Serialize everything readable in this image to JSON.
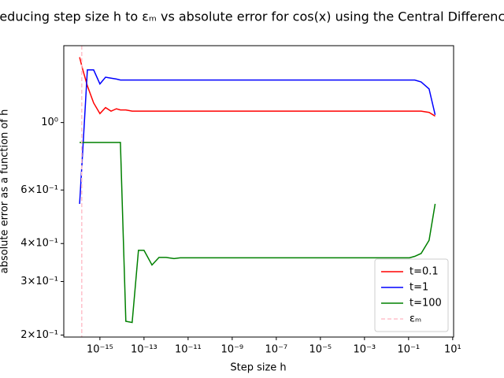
{
  "chart_data": {
    "type": "line",
    "title": "Reducing step size h to εₘ vs absolute error for cos(x) using the Central Difference",
    "xlabel": "Step size h",
    "ylabel": "absolute error as a function of h",
    "xscale": "log",
    "yscale": "log",
    "xlim": [
      2.3e-17,
      11
    ],
    "ylim": [
      0.197,
      1.79
    ],
    "xticks": [
      {
        "value": 1e-15,
        "label": "10⁻¹⁵"
      },
      {
        "value": 1e-13,
        "label": "10⁻¹³"
      },
      {
        "value": 1e-11,
        "label": "10⁻¹¹"
      },
      {
        "value": 1e-09,
        "label": "10⁻⁹"
      },
      {
        "value": 1e-07,
        "label": "10⁻⁷"
      },
      {
        "value": 1e-05,
        "label": "10⁻⁵"
      },
      {
        "value": 0.001,
        "label": "10⁻³"
      },
      {
        "value": 0.1,
        "label": "10⁻¹"
      },
      {
        "value": 10,
        "label": "10¹"
      }
    ],
    "yticks": [
      {
        "value": 0.2,
        "label": "2×10⁻¹"
      },
      {
        "value": 0.3,
        "label": "3×10⁻¹"
      },
      {
        "value": 0.4,
        "label": "4×10⁻¹"
      },
      {
        "value": 0.6,
        "label": "6×10⁻¹"
      },
      {
        "value": 1,
        "label": "10⁰"
      }
    ],
    "legend": "lower right",
    "x": [
      1.2e-16,
      1.6e-16,
      2.7e-16,
      5.2e-16,
      1e-15,
      1.8e-15,
      3.2e-15,
      5.6e-15,
      8.5e-15,
      1.5e-14,
      2.9e-14,
      5.6e-14,
      1e-13,
      2.3e-13,
      4.8e-13,
      1e-12,
      2.3e-12,
      4.4e-12,
      1.5e-09,
      5.6e-06,
      0.11,
      0.19,
      0.37,
      0.85,
      1.6
    ],
    "series": [
      {
        "name": "t=0.1",
        "color": "#ff0000",
        "values": [
          1.64,
          1.51,
          1.32,
          1.16,
          1.07,
          1.12,
          1.09,
          1.11,
          1.1,
          1.1,
          1.09,
          1.09,
          1.09,
          1.09,
          1.09,
          1.09,
          1.09,
          1.09,
          1.09,
          1.09,
          1.09,
          1.09,
          1.09,
          1.08,
          1.05
        ]
      },
      {
        "name": "t=1",
        "color": "#0000ff",
        "values": [
          0.54,
          0.77,
          1.49,
          1.49,
          1.34,
          1.41,
          1.4,
          1.39,
          1.38,
          1.38,
          1.38,
          1.38,
          1.38,
          1.38,
          1.38,
          1.38,
          1.38,
          1.38,
          1.38,
          1.38,
          1.38,
          1.38,
          1.36,
          1.29,
          1.06
        ]
      },
      {
        "name": "t=100",
        "color": "#008000",
        "values": [
          0.86,
          0.86,
          0.86,
          0.86,
          0.86,
          0.86,
          0.86,
          0.86,
          0.86,
          0.222,
          0.22,
          0.38,
          0.38,
          0.34,
          0.36,
          0.36,
          0.357,
          0.359,
          0.359,
          0.359,
          0.359,
          0.363,
          0.371,
          0.41,
          0.54
        ]
      }
    ],
    "vline": {
      "name": "εₘ",
      "color": "#ffc0cb",
      "x": 1.5e-16
    }
  }
}
